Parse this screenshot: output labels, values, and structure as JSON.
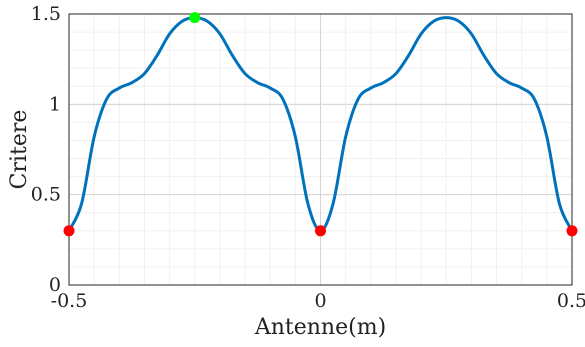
{
  "chart_data": {
    "type": "line",
    "title": "",
    "xlabel": "Antenne(m)",
    "ylabel": "Critere",
    "xlim": [
      -0.5,
      0.5
    ],
    "ylim": [
      0,
      1.5
    ],
    "grid": true,
    "minor_grid": true,
    "xticks": [
      -0.5,
      0,
      0.5
    ],
    "xtick_labels": [
      "-0.5",
      "0",
      "0.5"
    ],
    "yticks": [
      0,
      0.5,
      1,
      1.5
    ],
    "ytick_labels": [
      "0",
      "0.5",
      "1",
      "1.5"
    ],
    "series": [
      {
        "color": "#0072BD",
        "x": [
          -0.5,
          -0.475,
          -0.45,
          -0.425,
          -0.4,
          -0.375,
          -0.35,
          -0.325,
          -0.3,
          -0.275,
          -0.25,
          -0.225,
          -0.2,
          -0.175,
          -0.15,
          -0.125,
          -0.1,
          -0.075,
          -0.05,
          -0.025,
          0,
          0.025,
          0.05,
          0.075,
          0.1,
          0.125,
          0.15,
          0.175,
          0.2,
          0.225,
          0.25,
          0.275,
          0.3,
          0.325,
          0.35,
          0.375,
          0.4,
          0.425,
          0.45,
          0.475,
          0.5
        ],
        "y": [
          0.3,
          0.45,
          0.82,
          1.03,
          1.09,
          1.12,
          1.17,
          1.27,
          1.39,
          1.46,
          1.48,
          1.46,
          1.39,
          1.27,
          1.17,
          1.12,
          1.09,
          1.03,
          0.82,
          0.45,
          0.3,
          0.45,
          0.82,
          1.03,
          1.09,
          1.12,
          1.17,
          1.27,
          1.39,
          1.46,
          1.48,
          1.46,
          1.39,
          1.27,
          1.17,
          1.12,
          1.09,
          1.03,
          0.82,
          0.45,
          0.3
        ]
      }
    ],
    "markers": [
      {
        "x": -0.5,
        "y": 0.3,
        "color": "#FF0000"
      },
      {
        "x": 0,
        "y": 0.3,
        "color": "#FF0000"
      },
      {
        "x": 0.5,
        "y": 0.3,
        "color": "#FF0000"
      },
      {
        "x": -0.25,
        "y": 1.48,
        "color": "#00FF00"
      }
    ]
  }
}
